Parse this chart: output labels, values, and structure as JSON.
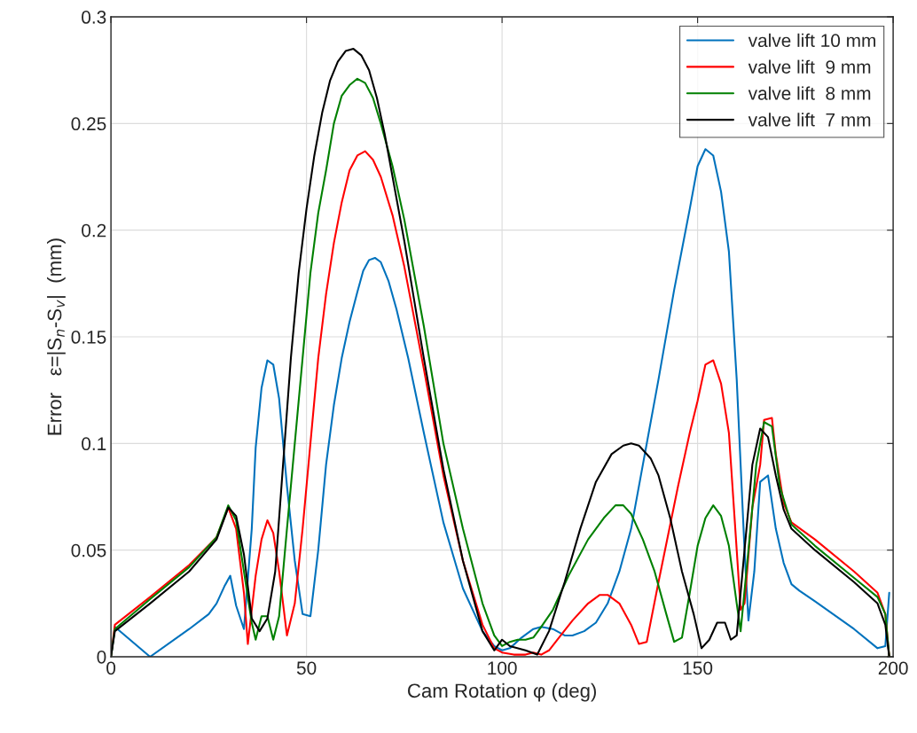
{
  "chart_data": {
    "type": "line",
    "xlabel": "Cam Rotation φ (deg)",
    "ylabel": "Error   ε=|S$_{n}$-S$_{v}$|  (mm)",
    "xlim": [
      0,
      200
    ],
    "xticks": [
      0,
      50,
      100,
      150,
      200
    ],
    "ylim": [
      0,
      0.3
    ],
    "yticks": [
      0,
      0.05,
      0.1,
      0.15,
      0.2,
      0.25,
      0.3
    ],
    "grid": true,
    "legend": "top right",
    "marker": "none",
    "line_style": "solid",
    "series": [
      {
        "name": "valve lift 10 mm",
        "color": "#0072bd",
        "x": [
          0,
          1,
          10,
          20,
          25,
          27,
          29,
          30.5,
          32,
          34,
          36,
          37,
          38.5,
          40,
          41.5,
          43,
          45,
          47,
          49,
          51,
          53,
          55,
          57,
          59,
          61,
          63,
          64.5,
          66,
          67.5,
          69,
          71,
          73,
          76,
          80,
          85,
          90,
          95,
          98,
          100,
          102,
          105,
          108,
          110,
          113,
          116,
          118,
          121,
          124,
          127,
          130,
          133,
          136,
          140,
          144,
          148,
          150,
          152,
          154,
          156,
          158,
          160,
          162,
          163,
          164.5,
          166,
          168,
          170,
          172,
          174,
          176,
          180,
          190,
          196,
          198,
          199
        ],
        "values": [
          0,
          0.014,
          0,
          0.013,
          0.02,
          0.025,
          0.033,
          0.038,
          0.024,
          0.013,
          0.06,
          0.098,
          0.126,
          0.139,
          0.137,
          0.121,
          0.08,
          0.045,
          0.02,
          0.019,
          0.05,
          0.09,
          0.118,
          0.14,
          0.157,
          0.171,
          0.181,
          0.186,
          0.187,
          0.185,
          0.176,
          0.163,
          0.14,
          0.105,
          0.063,
          0.032,
          0.012,
          0.005,
          0.003,
          0.004,
          0.009,
          0.013,
          0.014,
          0.013,
          0.01,
          0.01,
          0.012,
          0.016,
          0.025,
          0.04,
          0.06,
          0.09,
          0.13,
          0.172,
          0.21,
          0.23,
          0.238,
          0.235,
          0.218,
          0.19,
          0.13,
          0.05,
          0.017,
          0.04,
          0.082,
          0.085,
          0.06,
          0.044,
          0.034,
          0.031,
          0.026,
          0.013,
          0.004,
          0.005,
          0.03
        ]
      },
      {
        "name": "valve lift  9 mm",
        "color": "#ff0000",
        "x": [
          0,
          1,
          10,
          20,
          27,
          30,
          32,
          34,
          35,
          36,
          37,
          38.5,
          40,
          41.5,
          43,
          45,
          47,
          49,
          51,
          53,
          55,
          57,
          59,
          61,
          63,
          65,
          67,
          69,
          72,
          75,
          80,
          85,
          90,
          95,
          98,
          100,
          103,
          106,
          108,
          110,
          112,
          115,
          118,
          122,
          125,
          127,
          130,
          133,
          135,
          137,
          140,
          145,
          148,
          150,
          152,
          154,
          156,
          158,
          160,
          161,
          162,
          164,
          166,
          167,
          169,
          170,
          172,
          174,
          180,
          190,
          196,
          198,
          199
        ],
        "values": [
          0,
          0.015,
          0.028,
          0.043,
          0.056,
          0.07,
          0.06,
          0.03,
          0.006,
          0.022,
          0.038,
          0.055,
          0.064,
          0.058,
          0.04,
          0.01,
          0.025,
          0.06,
          0.1,
          0.14,
          0.17,
          0.194,
          0.213,
          0.228,
          0.235,
          0.237,
          0.233,
          0.225,
          0.207,
          0.183,
          0.135,
          0.085,
          0.045,
          0.015,
          0.004,
          0.002,
          0.001,
          0.001,
          0.002,
          0.001,
          0.003,
          0.01,
          0.017,
          0.025,
          0.029,
          0.029,
          0.025,
          0.015,
          0.006,
          0.007,
          0.035,
          0.08,
          0.105,
          0.12,
          0.137,
          0.139,
          0.128,
          0.105,
          0.05,
          0.022,
          0.025,
          0.07,
          0.09,
          0.111,
          0.112,
          0.095,
          0.072,
          0.063,
          0.055,
          0.04,
          0.03,
          0.02,
          0
        ]
      },
      {
        "name": "valve lift  8 mm",
        "color": "#008000",
        "x": [
          0,
          1,
          10,
          20,
          27,
          30,
          32,
          34,
          36,
          37,
          38.5,
          40,
          41.5,
          43,
          45,
          47,
          49,
          51,
          53,
          55,
          57,
          59,
          61,
          63,
          65,
          67,
          69,
          72,
          75,
          80,
          85,
          90,
          95,
          98,
          100,
          102,
          104,
          106,
          108,
          110,
          113,
          117,
          122,
          126,
          129,
          131,
          133,
          136,
          139,
          142,
          144,
          146,
          148,
          150,
          152,
          154,
          156,
          158,
          160,
          161,
          163,
          165,
          167,
          169,
          171,
          174,
          180,
          190,
          196,
          198,
          199
        ],
        "values": [
          0,
          0.013,
          0.027,
          0.042,
          0.056,
          0.071,
          0.064,
          0.04,
          0.016,
          0.008,
          0.019,
          0.019,
          0.008,
          0.019,
          0.06,
          0.1,
          0.14,
          0.18,
          0.208,
          0.228,
          0.25,
          0.263,
          0.268,
          0.271,
          0.269,
          0.262,
          0.25,
          0.23,
          0.205,
          0.155,
          0.1,
          0.06,
          0.025,
          0.01,
          0.005,
          0.007,
          0.008,
          0.008,
          0.009,
          0.014,
          0.022,
          0.038,
          0.055,
          0.065,
          0.071,
          0.071,
          0.067,
          0.055,
          0.04,
          0.02,
          0.007,
          0.009,
          0.03,
          0.052,
          0.065,
          0.071,
          0.066,
          0.052,
          0.025,
          0.012,
          0.05,
          0.09,
          0.11,
          0.108,
          0.08,
          0.062,
          0.052,
          0.037,
          0.028,
          0.02,
          0
        ]
      },
      {
        "name": "valve lift  7 mm",
        "color": "#000000",
        "x": [
          0,
          1,
          10,
          20,
          27,
          30,
          32,
          34,
          36,
          38,
          40,
          42,
          44,
          46,
          48,
          50,
          52,
          54,
          56,
          58,
          60,
          62,
          64,
          66,
          68,
          70,
          75,
          80,
          85,
          90,
          95,
          98,
          100,
          102,
          106,
          109,
          112,
          116,
          120,
          124,
          128,
          131,
          133,
          135,
          138,
          140,
          143,
          146,
          149,
          151,
          153,
          155,
          157,
          158.5,
          160,
          162,
          164,
          166,
          168,
          170,
          172,
          174,
          180,
          190,
          196,
          198,
          199
        ],
        "values": [
          0,
          0.012,
          0.025,
          0.04,
          0.055,
          0.07,
          0.066,
          0.048,
          0.018,
          0.012,
          0.018,
          0.04,
          0.09,
          0.14,
          0.18,
          0.21,
          0.235,
          0.255,
          0.27,
          0.279,
          0.284,
          0.285,
          0.282,
          0.275,
          0.262,
          0.245,
          0.195,
          0.14,
          0.088,
          0.045,
          0.012,
          0.003,
          0.008,
          0.005,
          0.003,
          0.001,
          0.012,
          0.035,
          0.06,
          0.082,
          0.095,
          0.099,
          0.1,
          0.099,
          0.093,
          0.085,
          0.065,
          0.04,
          0.02,
          0.004,
          0.008,
          0.016,
          0.016,
          0.008,
          0.01,
          0.05,
          0.09,
          0.107,
          0.103,
          0.085,
          0.069,
          0.06,
          0.05,
          0.035,
          0.025,
          0.015,
          0
        ]
      }
    ]
  }
}
